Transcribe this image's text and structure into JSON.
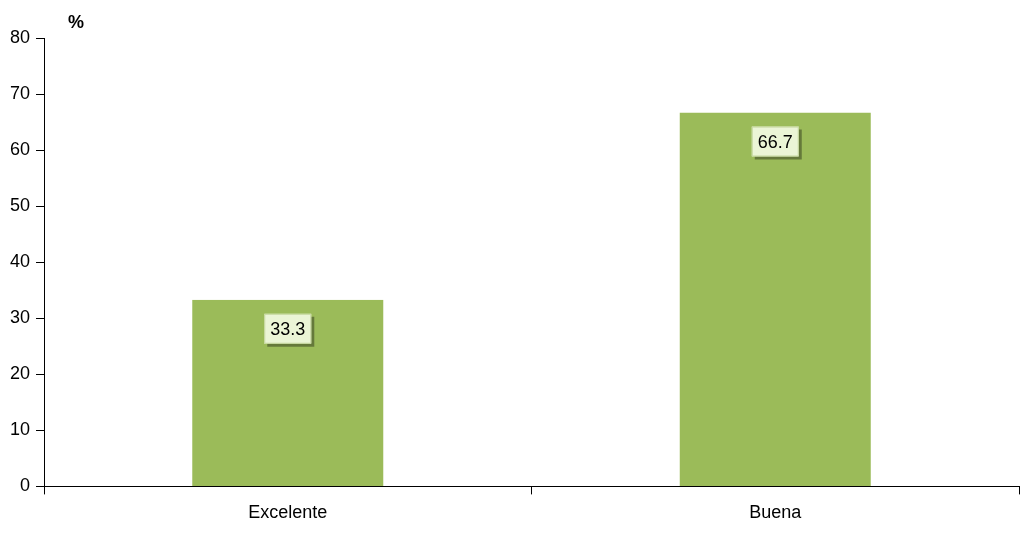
{
  "chart_data": {
    "type": "bar",
    "ylabel": "%",
    "categories": [
      "Excelente",
      "Buena"
    ],
    "values": [
      33.3,
      66.7
    ],
    "color": "#9bbb59",
    "ylim": [
      0,
      80
    ],
    "yticks": [
      0,
      10,
      20,
      30,
      40,
      50,
      60,
      70,
      80
    ],
    "grid": false,
    "legend": false,
    "data_labels": true
  }
}
